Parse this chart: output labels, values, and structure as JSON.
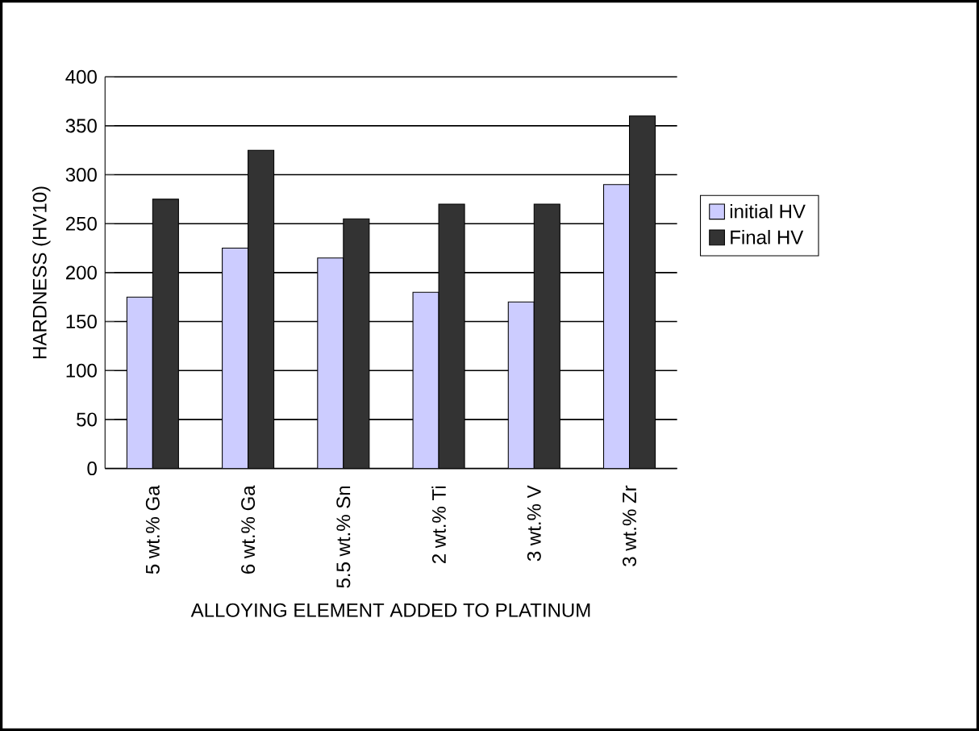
{
  "chart_data": {
    "type": "bar",
    "xlabel": "ALLOYING ELEMENT ADDED TO PLATINUM",
    "ylabel": "HARDNESS (HV10)",
    "categories": [
      "5 wt.% Ga",
      "6 wt.% Ga",
      "5.5 wt.% Sn",
      "2 wt.% Ti",
      "3 wt.% V",
      "3 wt.% Zr"
    ],
    "series": [
      {
        "name": "initial HV",
        "color": "#ccccff",
        "values": [
          175,
          225,
          215,
          180,
          170,
          290
        ]
      },
      {
        "name": "Final HV",
        "color": "#333333",
        "values": [
          275,
          325,
          255,
          270,
          270,
          360
        ]
      }
    ],
    "ylim": [
      0,
      400
    ],
    "yticks": [
      0,
      50,
      100,
      150,
      200,
      250,
      300,
      350,
      400
    ],
    "grid": "y",
    "legend": "right"
  }
}
